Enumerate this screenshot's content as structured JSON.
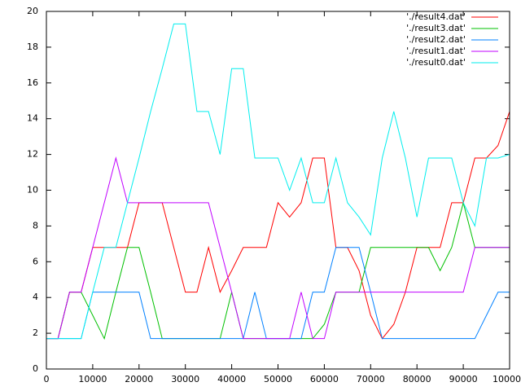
{
  "chart_data": {
    "type": "line",
    "x": [
      0,
      2500,
      5000,
      7500,
      10000,
      12500,
      15000,
      17500,
      20000,
      22500,
      25000,
      27500,
      30000,
      32500,
      35000,
      37500,
      40000,
      42500,
      45000,
      47500,
      50000,
      52500,
      55000,
      57500,
      60000,
      62500,
      65000,
      67500,
      70000,
      72500,
      75000,
      77500,
      80000,
      82500,
      85000,
      87500,
      90000,
      92500,
      95000,
      97500,
      100000
    ],
    "series": [
      {
        "name": "'./result4.dat'",
        "color": "#ff0000",
        "values": [
          1.7,
          1.7,
          4.3,
          4.3,
          6.8,
          6.8,
          6.8,
          6.8,
          9.3,
          9.3,
          9.3,
          6.8,
          4.3,
          4.3,
          6.8,
          4.3,
          5.5,
          6.8,
          6.8,
          6.8,
          9.3,
          8.5,
          9.3,
          11.8,
          11.8,
          6.8,
          6.8,
          5.5,
          3.0,
          1.7,
          2.5,
          4.3,
          6.8,
          6.8,
          6.8,
          9.3,
          9.3,
          11.8,
          11.8,
          12.5,
          14.4
        ]
      },
      {
        "name": "'./result3.dat'",
        "color": "#00c000",
        "values": [
          1.7,
          1.7,
          4.3,
          4.3,
          3.0,
          1.7,
          4.3,
          6.8,
          6.8,
          4.3,
          1.7,
          1.7,
          1.7,
          1.7,
          1.7,
          1.7,
          4.3,
          1.7,
          1.7,
          1.7,
          1.7,
          1.7,
          1.7,
          1.7,
          2.5,
          4.3,
          4.3,
          4.3,
          6.8,
          6.8,
          6.8,
          6.8,
          6.8,
          6.8,
          5.5,
          6.8,
          9.3,
          6.8,
          6.8,
          6.8,
          6.8
        ]
      },
      {
        "name": "'./result2.dat'",
        "color": "#0080ff",
        "values": [
          1.7,
          1.7,
          1.7,
          1.7,
          4.3,
          4.3,
          4.3,
          4.3,
          4.3,
          1.7,
          1.7,
          1.7,
          1.7,
          1.7,
          1.7,
          1.7,
          1.7,
          1.7,
          4.3,
          1.7,
          1.7,
          1.7,
          1.7,
          4.3,
          4.3,
          6.8,
          6.8,
          6.8,
          4.3,
          1.7,
          1.7,
          1.7,
          1.7,
          1.7,
          1.7,
          1.7,
          1.7,
          1.7,
          3.0,
          4.3,
          4.3
        ]
      },
      {
        "name": "'./result1.dat'",
        "color": "#c000ff",
        "values": [
          1.7,
          1.7,
          4.3,
          4.3,
          6.8,
          9.3,
          11.8,
          9.3,
          9.3,
          9.3,
          9.3,
          9.3,
          9.3,
          9.3,
          9.3,
          6.8,
          4.3,
          1.7,
          1.7,
          1.7,
          1.7,
          1.7,
          4.3,
          1.7,
          1.7,
          4.3,
          4.3,
          4.3,
          4.3,
          4.3,
          4.3,
          4.3,
          4.3,
          4.3,
          4.3,
          4.3,
          4.3,
          6.8,
          6.8,
          6.8,
          6.8
        ]
      },
      {
        "name": "'./result0.dat'",
        "color": "#00eeee",
        "values": [
          1.7,
          1.7,
          1.7,
          1.7,
          4.3,
          6.8,
          6.8,
          9.3,
          11.8,
          14.4,
          16.8,
          19.3,
          19.3,
          14.4,
          14.4,
          12.0,
          16.8,
          16.8,
          11.8,
          11.8,
          11.8,
          10.0,
          11.8,
          9.3,
          9.3,
          11.8,
          9.3,
          8.5,
          7.5,
          11.8,
          14.4,
          11.8,
          8.5,
          11.8,
          11.8,
          11.8,
          9.3,
          8.0,
          11.8,
          11.8,
          12.0
        ]
      }
    ],
    "xlim": [
      0,
      100000
    ],
    "ylim": [
      0,
      20
    ],
    "xticks": [
      0,
      10000,
      20000,
      30000,
      40000,
      50000,
      60000,
      70000,
      80000,
      90000,
      100000
    ],
    "yticks": [
      0,
      2,
      4,
      6,
      8,
      10,
      12,
      14,
      16,
      18,
      20
    ],
    "legend": "top-right"
  }
}
